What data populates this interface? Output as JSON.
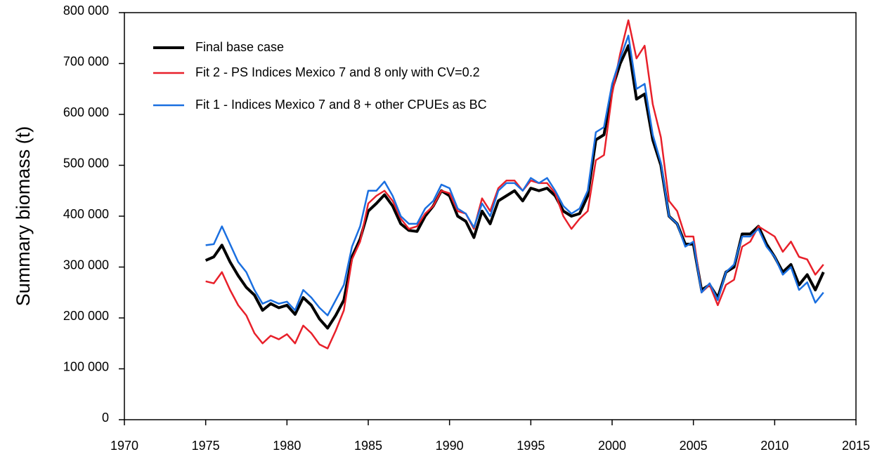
{
  "chart_data": {
    "type": "line",
    "ylabel": "Summary biomass (t)",
    "x": [
      1975,
      1975.5,
      1976,
      1976.5,
      1977,
      1977.5,
      1978,
      1978.5,
      1979,
      1979.5,
      1980,
      1980.5,
      1981,
      1981.5,
      1982,
      1982.5,
      1983,
      1983.5,
      1984,
      1984.5,
      1985,
      1985.5,
      1986,
      1986.5,
      1987,
      1987.5,
      1988,
      1988.5,
      1989,
      1989.5,
      1990,
      1990.5,
      1991,
      1991.5,
      1992,
      1992.5,
      1993,
      1993.5,
      1994,
      1994.5,
      1995,
      1995.5,
      1996,
      1996.5,
      1997,
      1997.5,
      1998,
      1998.5,
      1999,
      1999.5,
      2000,
      2000.5,
      2001,
      2001.5,
      2002,
      2002.5,
      2003,
      2003.5,
      2004,
      2004.5,
      2005,
      2005.5,
      2006,
      2006.5,
      2007,
      2007.5,
      2008,
      2008.5,
      2009,
      2009.5,
      2010,
      2010.5,
      2011,
      2011.5,
      2012,
      2012.5,
      2013
    ],
    "series": [
      {
        "name": "Final base case",
        "color": "#000000",
        "width": 4,
        "values": [
          313000,
          320000,
          343000,
          310000,
          283000,
          260000,
          245000,
          215000,
          228000,
          220000,
          225000,
          207000,
          240000,
          225000,
          198000,
          180000,
          205000,
          235000,
          320000,
          355000,
          410000,
          425000,
          442000,
          420000,
          385000,
          372000,
          370000,
          400000,
          420000,
          450000,
          440000,
          400000,
          390000,
          358000,
          410000,
          385000,
          430000,
          440000,
          450000,
          430000,
          455000,
          450000,
          455000,
          440000,
          410000,
          400000,
          405000,
          440000,
          550000,
          560000,
          650000,
          700000,
          735000,
          630000,
          640000,
          550000,
          500000,
          400000,
          385000,
          345000,
          345000,
          255000,
          265000,
          240000,
          290000,
          300000,
          365000,
          365000,
          380000,
          345000,
          320000,
          290000,
          305000,
          265000,
          285000,
          255000,
          290000
        ]
      },
      {
        "name": "Fit 2 - PS Indices Mexico 7 and 8 only with CV=0.2",
        "color": "#e8202a",
        "width": 2.5,
        "values": [
          272000,
          268000,
          290000,
          255000,
          225000,
          205000,
          170000,
          150000,
          165000,
          158000,
          168000,
          150000,
          185000,
          170000,
          148000,
          140000,
          175000,
          215000,
          315000,
          350000,
          425000,
          440000,
          450000,
          430000,
          395000,
          375000,
          380000,
          405000,
          420000,
          450000,
          445000,
          410000,
          405000,
          375000,
          435000,
          410000,
          455000,
          470000,
          470000,
          450000,
          470000,
          465000,
          465000,
          445000,
          400000,
          375000,
          395000,
          410000,
          510000,
          520000,
          640000,
          720000,
          785000,
          710000,
          735000,
          620000,
          555000,
          430000,
          410000,
          360000,
          360000,
          250000,
          265000,
          225000,
          265000,
          275000,
          340000,
          350000,
          380000,
          370000,
          360000,
          330000,
          350000,
          320000,
          315000,
          285000,
          305000
        ]
      },
      {
        "name": "Fit 1 - Indices Mexico 7 and 8 + other CPUEs as BC",
        "color": "#1a6fe0",
        "width": 2.5,
        "values": [
          343000,
          345000,
          380000,
          345000,
          310000,
          290000,
          255000,
          228000,
          235000,
          228000,
          232000,
          215000,
          255000,
          240000,
          220000,
          205000,
          235000,
          265000,
          340000,
          380000,
          450000,
          450000,
          468000,
          440000,
          400000,
          385000,
          385000,
          415000,
          430000,
          462000,
          455000,
          415000,
          405000,
          378000,
          425000,
          400000,
          450000,
          465000,
          465000,
          450000,
          475000,
          465000,
          475000,
          450000,
          420000,
          405000,
          415000,
          450000,
          565000,
          575000,
          660000,
          710000,
          755000,
          650000,
          660000,
          560000,
          505000,
          400000,
          385000,
          340000,
          350000,
          250000,
          268000,
          235000,
          290000,
          305000,
          360000,
          360000,
          375000,
          340000,
          320000,
          285000,
          300000,
          255000,
          270000,
          230000,
          250000
        ]
      }
    ],
    "xlim": [
      1970,
      2015
    ],
    "xticks": [
      1970,
      1975,
      1980,
      1985,
      1990,
      1995,
      2000,
      2005,
      2010,
      2015
    ],
    "ylim": [
      0,
      800000
    ],
    "yticks": [
      0,
      {
        "value": 100000,
        "label": "100 000"
      },
      {
        "value": 200000,
        "label": "200 000"
      },
      {
        "value": 300000,
        "label": "300 000"
      },
      {
        "value": 400000,
        "label": "400 000"
      },
      {
        "value": 500000,
        "label": "500 000"
      },
      {
        "value": 600000,
        "label": "600 000"
      },
      {
        "value": 700000,
        "label": "700 000"
      },
      {
        "value": 800000,
        "label": "800 000"
      }
    ],
    "legend": "upper left",
    "grid": false
  }
}
